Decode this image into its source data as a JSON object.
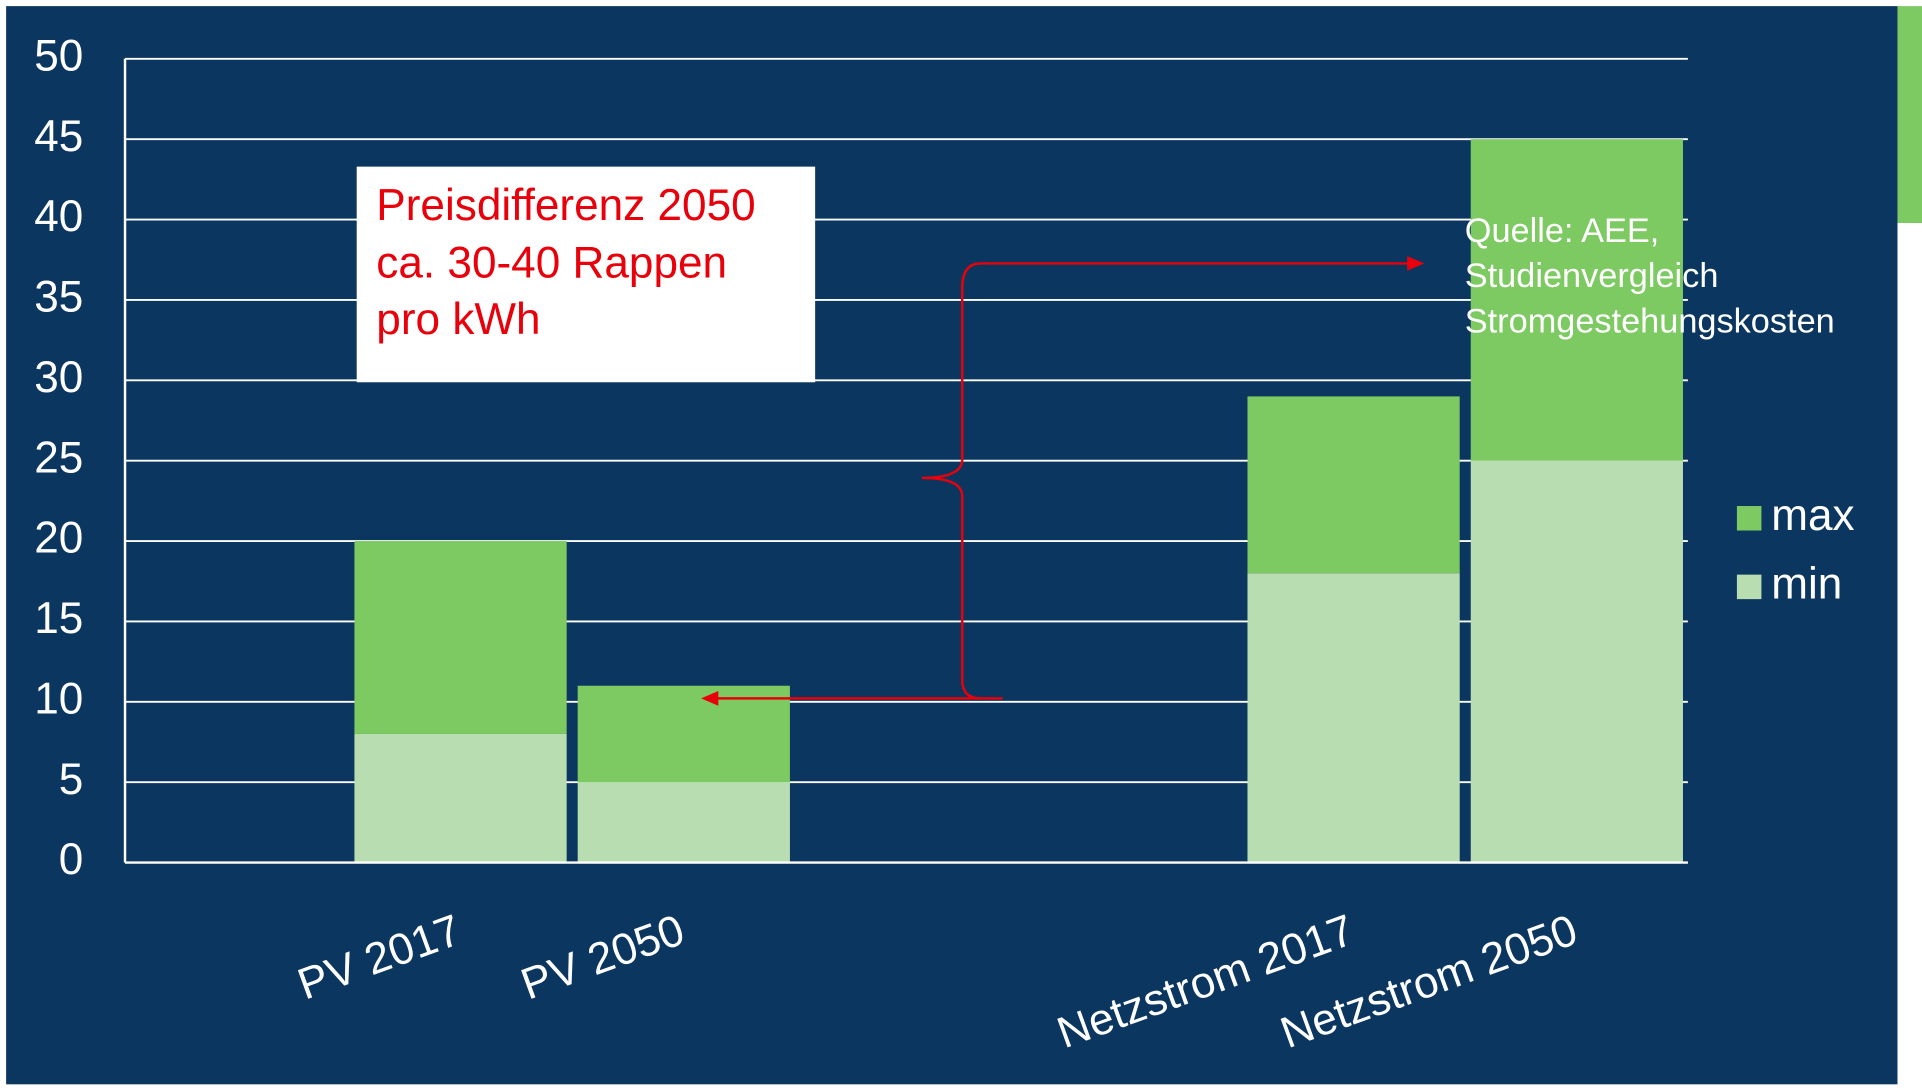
{
  "chart_data": {
    "type": "bar",
    "stacked": true,
    "categories": [
      null,
      "PV 2017",
      "PV 2050",
      null,
      null,
      "Netzstrom 2017",
      "Netzstrom 2050"
    ],
    "series": [
      {
        "name": "min",
        "color": "#b8ddb0",
        "values": [
          null,
          8,
          5,
          null,
          null,
          18,
          25
        ]
      },
      {
        "name": "max",
        "color": "#7dc962",
        "values": [
          null,
          12,
          6,
          null,
          null,
          11,
          20
        ]
      }
    ],
    "ylim": [
      0,
      50
    ],
    "yticks": [
      0,
      5,
      10,
      15,
      20,
      25,
      30,
      35,
      40,
      45,
      50
    ],
    "grid": true,
    "legend": "right",
    "annotations": {
      "price_note": [
        "Preisdifferenz 2050",
        "ca. 30-40 Rappen",
        "pro kWh"
      ],
      "source": [
        "Quelle: AEE,",
        "Studienvergleich",
        "Stromgestehungskosten"
      ]
    }
  }
}
